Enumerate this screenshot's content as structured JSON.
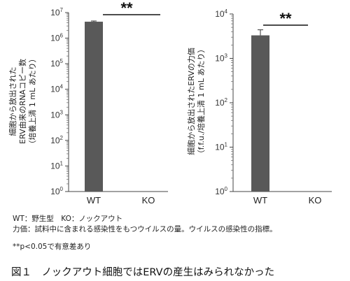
{
  "chart_data": [
    {
      "type": "bar",
      "title": "",
      "ylabel_lines": [
        "細胞から放出された",
        "ERV由来のRNAコピー数",
        "（培養上清 1 mL あたり）"
      ],
      "y_scale": "log",
      "ylim": [
        1,
        10000000
      ],
      "y_ticks": [
        {
          "value": 1,
          "base": "10",
          "exp": "0"
        },
        {
          "value": 10,
          "base": "10",
          "exp": "1"
        },
        {
          "value": 100,
          "base": "10",
          "exp": "2"
        },
        {
          "value": 1000,
          "base": "10",
          "exp": "3"
        },
        {
          "value": 10000,
          "base": "10",
          "exp": "4"
        },
        {
          "value": 100000,
          "base": "10",
          "exp": "5"
        },
        {
          "value": 1000000,
          "base": "10",
          "exp": "6"
        },
        {
          "value": 10000000,
          "base": "10",
          "exp": "7"
        }
      ],
      "categories": [
        "WT",
        "KO"
      ],
      "values": [
        4400000,
        0
      ],
      "errors": [
        300000,
        0
      ],
      "significance": "**",
      "bar_color": "#595959"
    },
    {
      "type": "bar",
      "title": "",
      "ylabel_lines": [
        "細胞から放出されたERVの力価",
        "（f.f.u./培養上清 1 mL あたり）"
      ],
      "y_scale": "log",
      "ylim": [
        1,
        10000
      ],
      "y_ticks": [
        {
          "value": 1,
          "base": "10",
          "exp": "0"
        },
        {
          "value": 10,
          "base": "10",
          "exp": "1"
        },
        {
          "value": 100,
          "base": "10",
          "exp": "2"
        },
        {
          "value": 1000,
          "base": "10",
          "exp": "3"
        },
        {
          "value": 10000,
          "base": "10",
          "exp": "4"
        }
      ],
      "categories": [
        "WT",
        "KO"
      ],
      "values": [
        3300,
        0
      ],
      "errors": [
        1100,
        0
      ],
      "significance": "**",
      "bar_color": "#595959"
    }
  ],
  "notes": {
    "abbrev": "WT：野生型　KO：ノックアウト",
    "titer_def": "力価：試料中に含まれる感染性をもつウイルスの量。ウイルスの感染性の指標。",
    "pvalue": "**p<0.05で有意差あり"
  },
  "caption": "図１　ノックアウト細胞ではERVの産生はみられなかった"
}
